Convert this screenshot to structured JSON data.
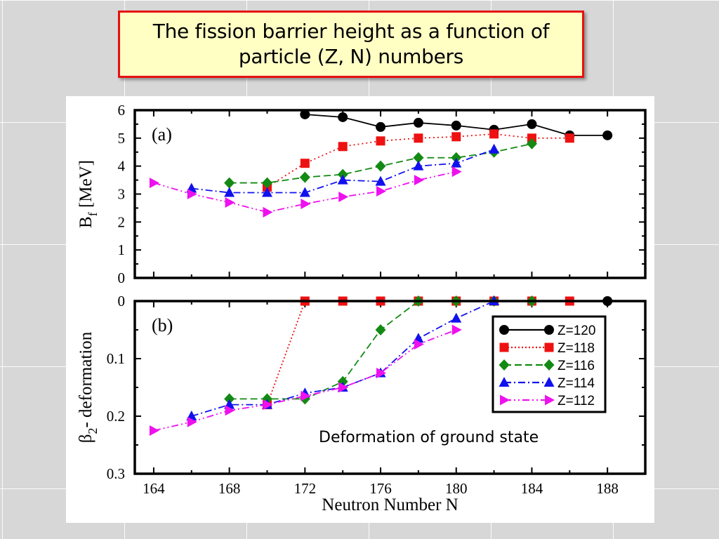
{
  "slide": {
    "title_line1": "The fission barrier height as a function of",
    "title_line2": "particle (Z, N) numbers"
  },
  "chart_data": [
    {
      "type": "line",
      "panel_label": "(a)",
      "ylabel_main": "B",
      "ylabel_sub": "f",
      "ylabel_rest": " [MeV]",
      "ylim": [
        0,
        6
      ],
      "yticks": [
        0,
        1,
        2,
        3,
        4,
        5,
        6
      ],
      "xlim": [
        163,
        190
      ],
      "series": [
        {
          "name": "Z=120",
          "color": "#000000",
          "dash": "",
          "marker": "circle",
          "x": [
            172,
            174,
            176,
            178,
            180,
            182,
            184,
            186,
            188
          ],
          "y": [
            5.85,
            5.75,
            5.4,
            5.55,
            5.45,
            5.3,
            5.5,
            5.1,
            5.1
          ]
        },
        {
          "name": "Z=118",
          "color": "#ee1111",
          "dash": "2,4",
          "marker": "square",
          "x": [
            170,
            172,
            174,
            176,
            178,
            180,
            182,
            184,
            186
          ],
          "y": [
            3.25,
            4.1,
            4.7,
            4.9,
            5.0,
            5.05,
            5.15,
            5.0,
            5.0
          ]
        },
        {
          "name": "Z=116",
          "color": "#138a13",
          "dash": "10,5",
          "marker": "diamond",
          "x": [
            168,
            170,
            172,
            174,
            176,
            178,
            180,
            182,
            184
          ],
          "y": [
            3.4,
            3.4,
            3.6,
            3.7,
            4.0,
            4.3,
            4.3,
            4.5,
            4.8
          ]
        },
        {
          "name": "Z=114",
          "color": "#1111ee",
          "dash": "10,4,2,4",
          "marker": "triangle-up",
          "x": [
            166,
            168,
            170,
            172,
            174,
            176,
            178,
            180,
            182
          ],
          "y": [
            3.2,
            3.05,
            3.05,
            3.05,
            3.5,
            3.45,
            4.0,
            4.1,
            4.6
          ]
        },
        {
          "name": "Z=112",
          "color": "#ee11ee",
          "dash": "10,4,2,4,2,4",
          "marker": "triangle-right",
          "x": [
            164,
            166,
            168,
            170,
            172,
            174,
            176,
            178,
            180
          ],
          "y": [
            3.4,
            3.0,
            2.7,
            2.35,
            2.65,
            2.9,
            3.1,
            3.5,
            3.8
          ]
        }
      ]
    },
    {
      "type": "line",
      "panel_label": "(b)",
      "ylabel_main": "β",
      "ylabel_sub": "2",
      "ylabel_rest": "- deformation",
      "xlabel": "Neutron Number N",
      "ylim": [
        0,
        0.3
      ],
      "y_inverted": true,
      "yticks": [
        0,
        0.1,
        0.2,
        0.3
      ],
      "ytick_labels": [
        "0",
        "0.1",
        "0.2",
        "0.3"
      ],
      "xticks": [
        164,
        168,
        172,
        176,
        180,
        184,
        188
      ],
      "xlim": [
        163,
        190
      ],
      "annotation": "Deformation of ground state",
      "legend": {
        "position": "right",
        "entries": [
          "Z=120",
          "Z=118",
          "Z=116",
          "Z=114",
          "Z=112"
        ]
      },
      "series": [
        {
          "name": "Z=120",
          "color": "#000000",
          "dash": "",
          "marker": "circle",
          "x": [
            188
          ],
          "y": [
            0.0
          ]
        },
        {
          "name": "Z=118",
          "color": "#ee1111",
          "dash": "2,3",
          "marker": "square",
          "x": [
            170,
            172,
            174,
            176,
            178,
            180,
            182,
            184,
            186
          ],
          "y": [
            0.18,
            0.0,
            0.0,
            0.0,
            0.0,
            0.0,
            0.0,
            0.0,
            0.0
          ]
        },
        {
          "name": "Z=116",
          "color": "#138a13",
          "dash": "10,5",
          "marker": "diamond",
          "x": [
            168,
            170,
            172,
            174,
            176,
            178,
            180,
            182,
            184
          ],
          "y": [
            0.17,
            0.17,
            0.17,
            0.14,
            0.05,
            0.0,
            0.0,
            0.0,
            0.0
          ]
        },
        {
          "name": "Z=114",
          "color": "#1111ee",
          "dash": "10,4,2,4",
          "marker": "triangle-up",
          "x": [
            166,
            168,
            170,
            172,
            174,
            176,
            178,
            180,
            182
          ],
          "y": [
            0.2,
            0.18,
            0.18,
            0.16,
            0.15,
            0.125,
            0.065,
            0.03,
            0.0
          ]
        },
        {
          "name": "Z=112",
          "color": "#ee11ee",
          "dash": "10,4,2,4,2,4",
          "marker": "triangle-right",
          "x": [
            164,
            166,
            168,
            170,
            172,
            174,
            176,
            178,
            180
          ],
          "y": [
            0.225,
            0.21,
            0.19,
            0.18,
            0.165,
            0.15,
            0.125,
            0.075,
            0.05
          ]
        }
      ]
    }
  ]
}
